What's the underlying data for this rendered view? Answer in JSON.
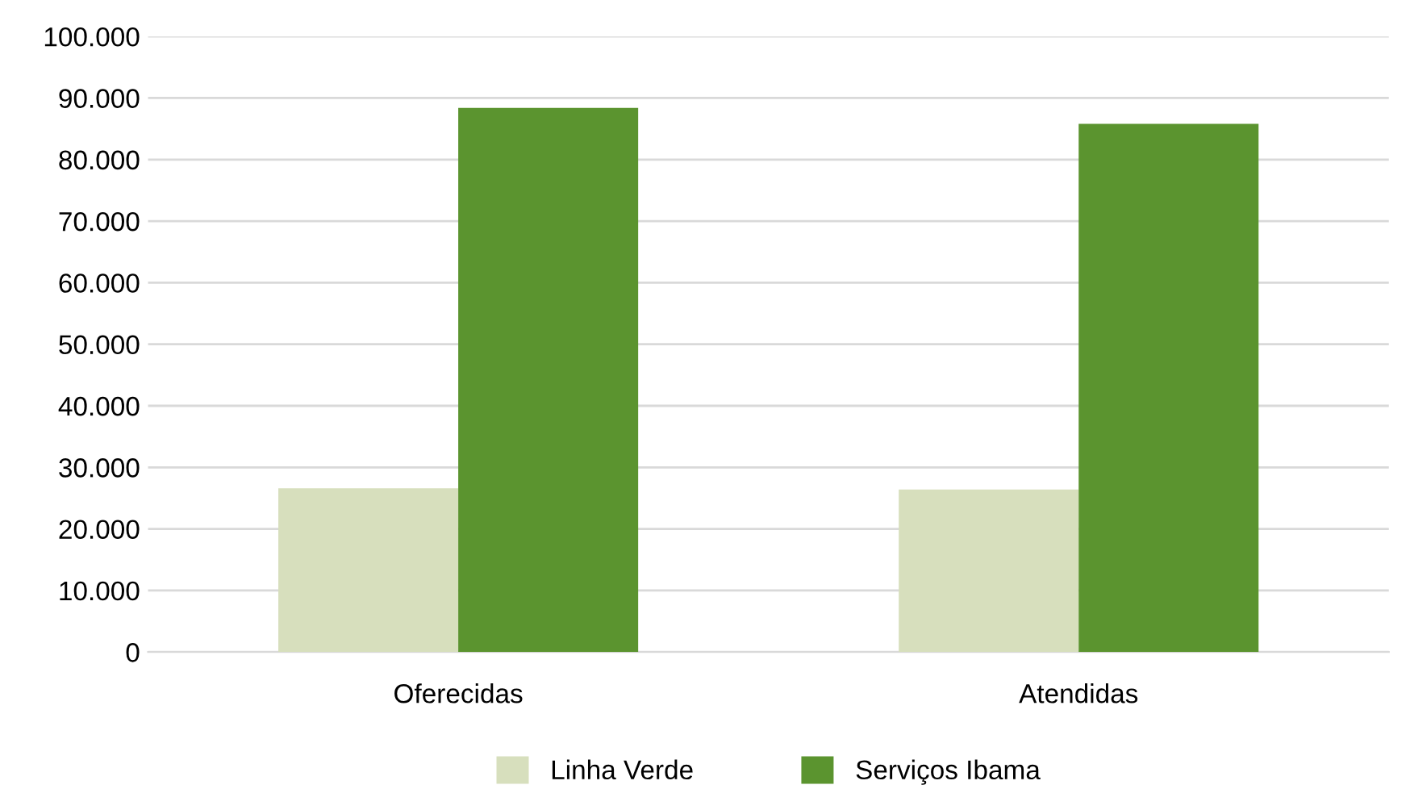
{
  "chart_data": {
    "type": "bar",
    "categories": [
      "Oferecidas",
      "Atendidas"
    ],
    "series": [
      {
        "name": "Linha Verde",
        "color": "#d7dfbd",
        "values": [
          26600,
          26400
        ]
      },
      {
        "name": "Serviços Ibama",
        "color": "#5b942f",
        "values": [
          88400,
          85800
        ]
      }
    ],
    "ylim": [
      0,
      100000
    ],
    "yticks": [
      {
        "value": 0,
        "label": "0"
      },
      {
        "value": 10000,
        "label": "10.000"
      },
      {
        "value": 20000,
        "label": "20.000"
      },
      {
        "value": 30000,
        "label": "30.000"
      },
      {
        "value": 40000,
        "label": "40.000"
      },
      {
        "value": 50000,
        "label": "50.000"
      },
      {
        "value": 60000,
        "label": "60.000"
      },
      {
        "value": 70000,
        "label": "70.000"
      },
      {
        "value": 80000,
        "label": "80.000"
      },
      {
        "value": 90000,
        "label": "90.000"
      },
      {
        "value": 100000,
        "label": "100.000"
      }
    ],
    "grid": "y",
    "legend": "bottom"
  }
}
